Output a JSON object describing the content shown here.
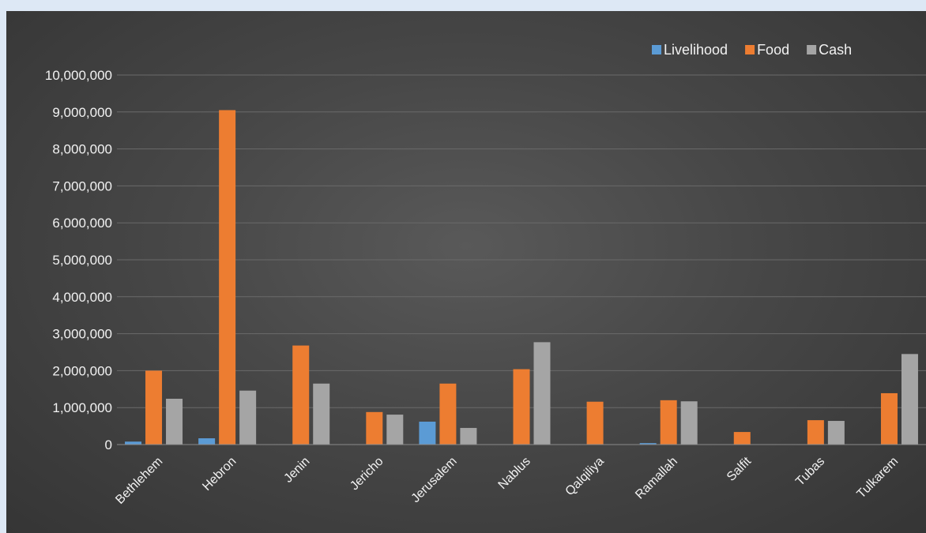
{
  "chart_data": {
    "type": "bar",
    "categories": [
      "Bethlehem",
      "Hebron",
      "Jenin",
      "Jericho",
      "Jerusalem",
      "Nablus",
      "Qalqiliya",
      "Ramallah",
      "Salfit",
      "Tubas",
      "Tulkarem"
    ],
    "series": [
      {
        "name": "Livelihood",
        "color": "#5b9bd5",
        "values": [
          80000,
          170000,
          0,
          0,
          620000,
          0,
          0,
          40000,
          0,
          0,
          0
        ]
      },
      {
        "name": "Food",
        "color": "#ed7d31",
        "values": [
          2000000,
          9050000,
          2680000,
          880000,
          1650000,
          2040000,
          1160000,
          1200000,
          340000,
          660000,
          1390000
        ]
      },
      {
        "name": "Cash",
        "color": "#a5a5a5",
        "values": [
          1240000,
          1460000,
          1650000,
          810000,
          450000,
          2770000,
          0,
          1170000,
          0,
          640000,
          2450000
        ]
      }
    ],
    "title": "",
    "xlabel": "",
    "ylabel": "",
    "ylim": [
      0,
      10000000
    ],
    "yticks": [
      0,
      1000000,
      2000000,
      3000000,
      4000000,
      5000000,
      6000000,
      7000000,
      8000000,
      9000000,
      10000000
    ],
    "ytick_labels": [
      "0",
      "1,000,000",
      "2,000,000",
      "3,000,000",
      "4,000,000",
      "5,000,000",
      "6,000,000",
      "7,000,000",
      "8,000,000",
      "9,000,000",
      "10,000,000"
    ],
    "grid": true,
    "legend": "top-right"
  }
}
